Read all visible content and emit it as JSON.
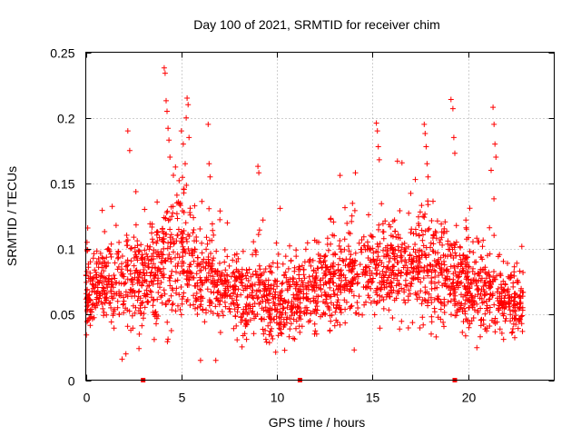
{
  "chart_data": {
    "type": "scatter",
    "title": "Day 100 of 2021, SRMTID for receiver chim",
    "xlabel": "GPS time / hours",
    "ylabel": "SRMTID / TECUs",
    "xlim": [
      0,
      24.5
    ],
    "ylim": [
      0,
      0.25
    ],
    "x_ticks": [
      0,
      5,
      10,
      15,
      20
    ],
    "x_tick_labels": [
      "0",
      "5",
      "10",
      "15",
      "20"
    ],
    "y_ticks": [
      0,
      0.05,
      0.1,
      0.15,
      0.2,
      0.25
    ],
    "y_tick_labels": [
      "0",
      "0.05",
      "0.1",
      "0.15",
      "0.2",
      "0.25"
    ],
    "grid": true,
    "marker": "+",
    "color": "#ff0000",
    "gap_markers_x": [
      3.0,
      11.2,
      19.3
    ],
    "data_extent_hours": [
      0,
      22.9
    ],
    "baseline_profile": {
      "hours": [
        0,
        1,
        2,
        3,
        4,
        5,
        6,
        7,
        8,
        9,
        10,
        11,
        12,
        13,
        14,
        15,
        16,
        17,
        18,
        19,
        20,
        21,
        22,
        22.9
      ],
      "median": [
        0.065,
        0.075,
        0.08,
        0.075,
        0.09,
        0.1,
        0.085,
        0.07,
        0.065,
        0.065,
        0.06,
        0.062,
        0.07,
        0.075,
        0.08,
        0.085,
        0.085,
        0.085,
        0.09,
        0.075,
        0.075,
        0.07,
        0.06,
        0.055
      ],
      "spread": [
        0.02,
        0.02,
        0.025,
        0.025,
        0.03,
        0.035,
        0.025,
        0.018,
        0.018,
        0.02,
        0.02,
        0.02,
        0.02,
        0.022,
        0.025,
        0.025,
        0.022,
        0.025,
        0.028,
        0.025,
        0.025,
        0.02,
        0.018,
        0.015
      ]
    },
    "highlighted_points": [
      {
        "x": 0.1,
        "y": 0.116
      },
      {
        "x": 1.9,
        "y": 0.016
      },
      {
        "x": 2.1,
        "y": 0.02
      },
      {
        "x": 2.2,
        "y": 0.19
      },
      {
        "x": 2.3,
        "y": 0.175
      },
      {
        "x": 4.1,
        "y": 0.238
      },
      {
        "x": 4.15,
        "y": 0.234
      },
      {
        "x": 4.2,
        "y": 0.213
      },
      {
        "x": 4.25,
        "y": 0.205
      },
      {
        "x": 4.3,
        "y": 0.192
      },
      {
        "x": 4.35,
        "y": 0.183
      },
      {
        "x": 4.4,
        "y": 0.17
      },
      {
        "x": 5.0,
        "y": 0.19
      },
      {
        "x": 5.1,
        "y": 0.18
      },
      {
        "x": 5.2,
        "y": 0.165
      },
      {
        "x": 5.25,
        "y": 0.2
      },
      {
        "x": 5.3,
        "y": 0.215
      },
      {
        "x": 5.35,
        "y": 0.21
      },
      {
        "x": 5.4,
        "y": 0.185
      },
      {
        "x": 6.0,
        "y": 0.015
      },
      {
        "x": 6.4,
        "y": 0.195
      },
      {
        "x": 6.45,
        "y": 0.165
      },
      {
        "x": 6.5,
        "y": 0.155
      },
      {
        "x": 6.8,
        "y": 0.015
      },
      {
        "x": 9.0,
        "y": 0.163
      },
      {
        "x": 9.05,
        "y": 0.158
      },
      {
        "x": 14.1,
        "y": 0.158
      },
      {
        "x": 15.2,
        "y": 0.196
      },
      {
        "x": 15.25,
        "y": 0.19
      },
      {
        "x": 15.3,
        "y": 0.178
      },
      {
        "x": 15.35,
        "y": 0.168
      },
      {
        "x": 16.3,
        "y": 0.167
      },
      {
        "x": 17.7,
        "y": 0.195
      },
      {
        "x": 17.75,
        "y": 0.188
      },
      {
        "x": 17.8,
        "y": 0.178
      },
      {
        "x": 17.85,
        "y": 0.165
      },
      {
        "x": 17.9,
        "y": 0.155
      },
      {
        "x": 19.1,
        "y": 0.214
      },
      {
        "x": 19.2,
        "y": 0.207
      },
      {
        "x": 19.25,
        "y": 0.185
      },
      {
        "x": 19.3,
        "y": 0.173
      },
      {
        "x": 21.3,
        "y": 0.208
      },
      {
        "x": 21.35,
        "y": 0.195
      },
      {
        "x": 21.4,
        "y": 0.18
      },
      {
        "x": 21.45,
        "y": 0.17
      },
      {
        "x": 21.2,
        "y": 0.16
      }
    ],
    "point_count": 2400
  }
}
